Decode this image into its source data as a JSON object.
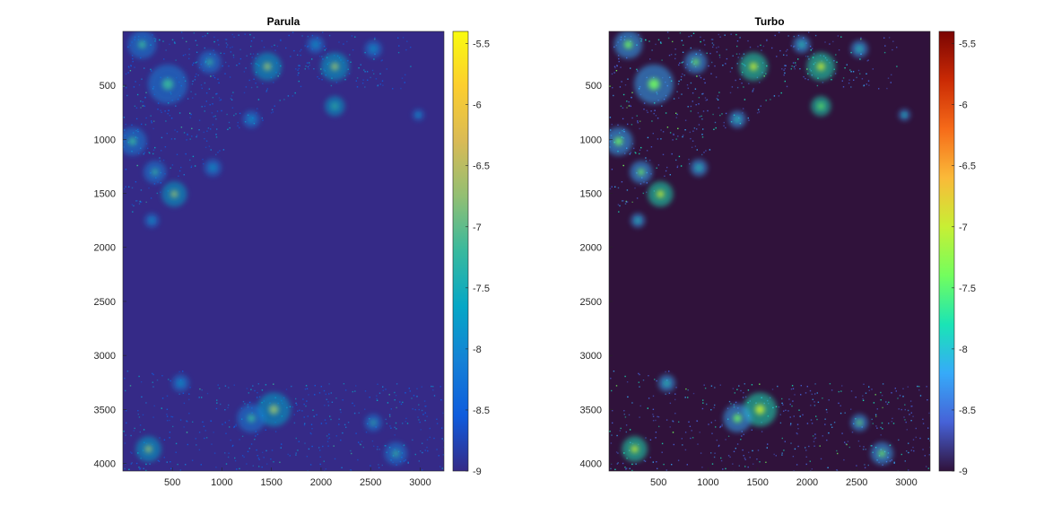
{
  "chart_data": [
    {
      "type": "heatmap",
      "title": "Parula",
      "colormap": "parula",
      "x_ticks": [
        500,
        1000,
        1500,
        2000,
        2500,
        3000
      ],
      "y_ticks": [
        500,
        1000,
        1500,
        2000,
        2500,
        3000,
        3500,
        4000
      ],
      "xlim": [
        1,
        3240
      ],
      "ylim": [
        1,
        4070
      ],
      "y_reversed": true,
      "colorbar": {
        "ticks": [
          -5.5,
          -6,
          -6.5,
          -7,
          -7.5,
          -8,
          -8.5,
          -9
        ],
        "range": [
          -9,
          -5.4
        ]
      },
      "background_value": -9,
      "colormap_stops": [
        "#352a87",
        "#0f5cdd",
        "#1481d6",
        "#06a7c6",
        "#38b99e",
        "#92bf73",
        "#d9ba56",
        "#fcce2e",
        "#f9fb0e"
      ]
    },
    {
      "type": "heatmap",
      "title": "Turbo",
      "colormap": "turbo",
      "x_ticks": [
        500,
        1000,
        1500,
        2000,
        2500,
        3000
      ],
      "y_ticks": [
        500,
        1000,
        1500,
        2000,
        2500,
        3000,
        3500,
        4000
      ],
      "xlim": [
        1,
        3240
      ],
      "ylim": [
        1,
        4070
      ],
      "y_reversed": true,
      "colorbar": {
        "ticks": [
          -5.5,
          -6,
          -6.5,
          -7,
          -7.5,
          -8,
          -8.5,
          -9
        ],
        "range": [
          -9,
          -5.4
        ]
      },
      "background_value": -9,
      "colormap_stops": [
        "#30123b",
        "#4662d7",
        "#36aaf9",
        "#1ae4b6",
        "#72fe5e",
        "#c8ef34",
        "#faba39",
        "#f66b19",
        "#ca2a04",
        "#7a0403"
      ]
    }
  ]
}
